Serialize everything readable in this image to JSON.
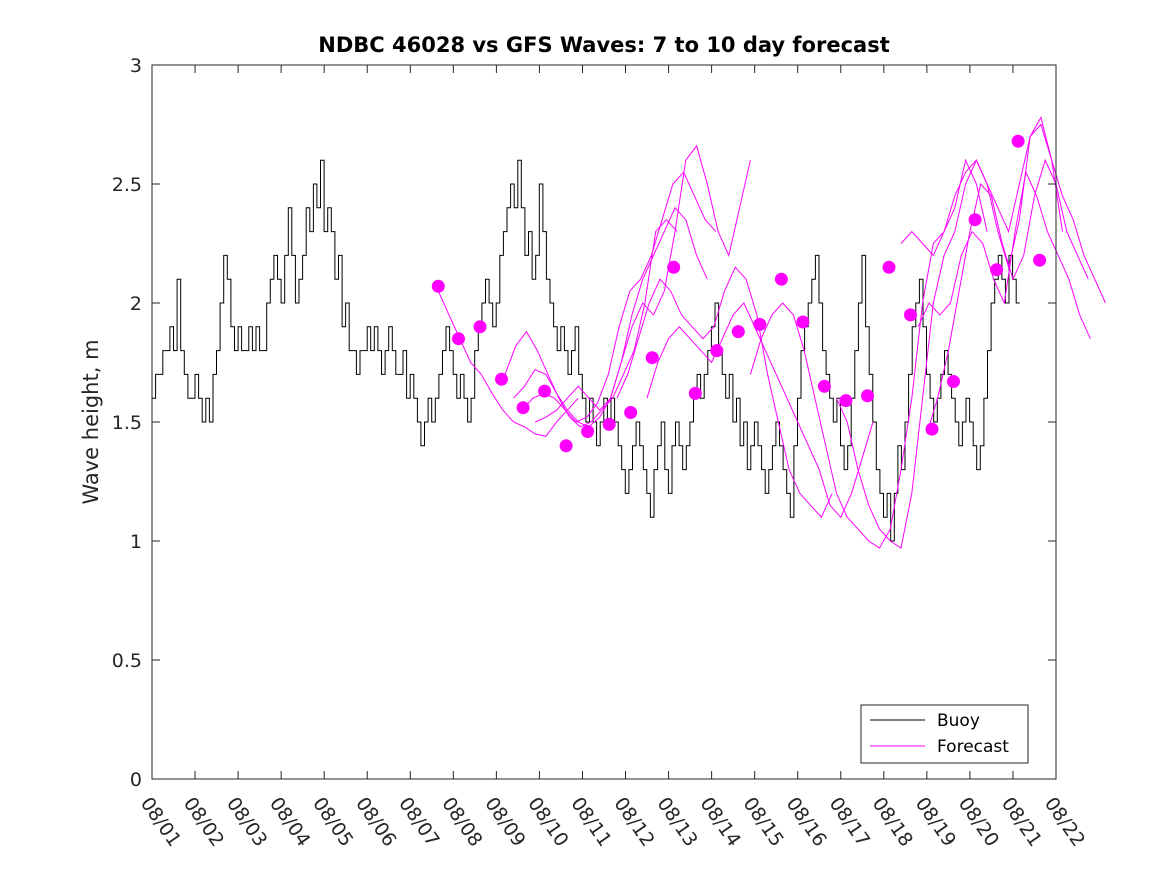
{
  "chart_data": {
    "type": "line",
    "title": "NDBC 46028 vs GFS Waves: 7 to 10 day forecast",
    "xlabel": "",
    "ylabel": "Wave height, m",
    "xlim": [
      0,
      21
    ],
    "ylim": [
      0,
      3
    ],
    "yticks": [
      0,
      0.5,
      1,
      1.5,
      2,
      2.5,
      3
    ],
    "ytick_labels": [
      "0",
      "0.5",
      "1",
      "1.5",
      "2",
      "2.5",
      "3"
    ],
    "xtick_labels": [
      "08/01",
      "08/02",
      "08/03",
      "08/04",
      "08/05",
      "08/06",
      "08/07",
      "08/08",
      "08/09",
      "08/10",
      "08/11",
      "08/12",
      "08/13",
      "08/14",
      "08/15",
      "08/16",
      "08/17",
      "08/18",
      "08/19",
      "08/20",
      "08/21",
      "08/22"
    ],
    "grid": false,
    "legend": {
      "placement": "bottom-right",
      "entries": [
        {
          "label": "Buoy",
          "color": "#000000"
        },
        {
          "label": "Forecast",
          "color": "#ff00ff"
        }
      ]
    },
    "series": [
      {
        "name": "Buoy",
        "color": "#000000",
        "x_step_days": 0.0833,
        "values": [
          1.6,
          1.7,
          1.7,
          1.8,
          1.8,
          1.9,
          1.8,
          2.1,
          1.8,
          1.7,
          1.6,
          1.6,
          1.7,
          1.6,
          1.5,
          1.6,
          1.5,
          1.7,
          1.8,
          2.0,
          2.2,
          2.1,
          1.9,
          1.8,
          1.9,
          1.8,
          1.8,
          1.9,
          1.8,
          1.9,
          1.8,
          1.8,
          2.0,
          2.1,
          2.2,
          2.1,
          2.0,
          2.2,
          2.4,
          2.2,
          2.0,
          2.1,
          2.2,
          2.4,
          2.3,
          2.5,
          2.4,
          2.6,
          2.3,
          2.4,
          2.3,
          2.1,
          2.2,
          1.9,
          2.0,
          1.8,
          1.8,
          1.7,
          1.8,
          1.8,
          1.9,
          1.8,
          1.9,
          1.8,
          1.7,
          1.8,
          1.9,
          1.8,
          1.7,
          1.7,
          1.8,
          1.6,
          1.7,
          1.6,
          1.5,
          1.4,
          1.5,
          1.6,
          1.5,
          1.6,
          1.7,
          1.8,
          1.9,
          1.8,
          1.7,
          1.6,
          1.7,
          1.6,
          1.5,
          1.6,
          1.8,
          1.9,
          2.0,
          2.1,
          2.0,
          1.9,
          2.0,
          2.2,
          2.3,
          2.4,
          2.5,
          2.4,
          2.6,
          2.4,
          2.2,
          2.3,
          2.1,
          2.2,
          2.5,
          2.3,
          2.1,
          2.0,
          1.9,
          1.8,
          1.9,
          1.8,
          1.7,
          1.8,
          1.9,
          1.7,
          1.6,
          1.5,
          1.6,
          1.5,
          1.4,
          1.5,
          1.6,
          1.5,
          1.6,
          1.5,
          1.4,
          1.3,
          1.2,
          1.3,
          1.4,
          1.5,
          1.4,
          1.3,
          1.2,
          1.1,
          1.3,
          1.4,
          1.5,
          1.3,
          1.2,
          1.4,
          1.5,
          1.4,
          1.3,
          1.4,
          1.5,
          1.6,
          1.7,
          1.6,
          1.7,
          1.8,
          1.9,
          2.0,
          1.8,
          1.7,
          1.6,
          1.7,
          1.5,
          1.6,
          1.4,
          1.5,
          1.3,
          1.4,
          1.5,
          1.4,
          1.3,
          1.2,
          1.3,
          1.4,
          1.5,
          1.4,
          1.3,
          1.2,
          1.1,
          1.4,
          1.6,
          1.8,
          1.9,
          2.0,
          2.1,
          2.2,
          2.0,
          1.8,
          1.7,
          1.6,
          1.5,
          1.6,
          1.4,
          1.3,
          1.4,
          1.6,
          1.8,
          2.0,
          2.2,
          1.9,
          1.7,
          1.5,
          1.3,
          1.2,
          1.1,
          1.2,
          1.0,
          1.2,
          1.4,
          1.3,
          1.5,
          1.7,
          1.9,
          2.0,
          2.1,
          1.9,
          1.7,
          1.6,
          1.5,
          1.6,
          1.7,
          1.8,
          1.7,
          1.6,
          1.5,
          1.4,
          1.5,
          1.6,
          1.5,
          1.4,
          1.3,
          1.4,
          1.6,
          1.8,
          2.0,
          2.1,
          2.2,
          2.1,
          2.0,
          2.2,
          2.1,
          2.0
        ]
      },
      {
        "name": "Forecast",
        "color": "#ff00ff",
        "runs": [
          {
            "x0": 6.65,
            "x_step_days": 0.25,
            "values": [
              2.05,
              1.95,
              1.85,
              1.75,
              1.7,
              1.62,
              1.55,
              1.5,
              1.48,
              1.45,
              1.44,
              1.5,
              1.55,
              1.6
            ]
          },
          {
            "x0": 8.2,
            "x_step_days": 0.25,
            "values": [
              1.7,
              1.82,
              1.88,
              1.8,
              1.7,
              1.6,
              1.52,
              1.48,
              1.5,
              1.55,
              1.6,
              1.7,
              1.8,
              2.0,
              2.3,
              2.35,
              2.3
            ]
          },
          {
            "x0": 8.4,
            "x_step_days": 0.25,
            "values": [
              1.6,
              1.65,
              1.72,
              1.7,
              1.62,
              1.55,
              1.5,
              1.48,
              1.52,
              1.6,
              1.75,
              1.95,
              2.1,
              2.2,
              2.3,
              2.4,
              2.35,
              2.2,
              2.1
            ]
          },
          {
            "x0": 8.6,
            "x_step_days": 0.25,
            "values": [
              1.55,
              1.6,
              1.62,
              1.6,
              1.55,
              1.5,
              1.52,
              1.58,
              1.7,
              1.9,
              2.05,
              2.1,
              2.2,
              2.35,
              2.5,
              2.55,
              2.45,
              2.35,
              2.3
            ]
          },
          {
            "x0": 8.9,
            "x_step_days": 0.25,
            "values": [
              1.5,
              1.52,
              1.55,
              1.6,
              1.65,
              1.6,
              1.55,
              1.6,
              1.75,
              1.9,
              2.0,
              1.95,
              2.05,
              2.3,
              2.6,
              2.66,
              2.5,
              2.3,
              2.2,
              2.4,
              2.6
            ]
          },
          {
            "x0": 10.8,
            "x_step_days": 0.25,
            "values": [
              1.6,
              1.7,
              1.85,
              2.0,
              2.1,
              2.05,
              1.95,
              1.9,
              1.85,
              1.9,
              2.05,
              2.15,
              2.1,
              1.95,
              1.7,
              1.5,
              1.3,
              1.2,
              1.15,
              1.1,
              1.2
            ]
          },
          {
            "x0": 11.5,
            "x_step_days": 0.25,
            "values": [
              1.6,
              1.75,
              1.85,
              1.9,
              1.85,
              1.8,
              1.75,
              1.85,
              1.95,
              2.0,
              1.9,
              1.8,
              1.7,
              1.6,
              1.5,
              1.4,
              1.3,
              1.15,
              1.1,
              1.2,
              1.35,
              1.5
            ]
          },
          {
            "x0": 13.9,
            "x_step_days": 0.25,
            "values": [
              1.7,
              1.85,
              1.95,
              2.0,
              1.95,
              1.8,
              1.6,
              1.4,
              1.2,
              1.1,
              1.05,
              1.0,
              0.97,
              1.05,
              1.3,
              1.6,
              2.0,
              2.25,
              2.3,
              2.4,
              2.6,
              2.5,
              2.3
            ]
          },
          {
            "x0": 15.9,
            "x_step_days": 0.25,
            "values": [
              1.6,
              1.5,
              1.3,
              1.15,
              1.05,
              1.0,
              0.97,
              1.2,
              1.6,
              2.0,
              2.2,
              2.3,
              2.5,
              2.6,
              2.5,
              2.4,
              2.3,
              2.5,
              2.7,
              2.75,
              2.6,
              2.3
            ]
          },
          {
            "x0": 17.4,
            "x_step_days": 0.25,
            "values": [
              2.25,
              2.3,
              2.25,
              2.2,
              2.3,
              2.45,
              2.55,
              2.6,
              2.5,
              2.3,
              2.15,
              2.35,
              2.7,
              2.78,
              2.6,
              2.45,
              2.35,
              2.2,
              2.1,
              2.0
            ]
          },
          {
            "x0": 17.8,
            "x_step_days": 0.25,
            "values": [
              1.9,
              2.0,
              1.95,
              2.0,
              2.2,
              2.3,
              2.25,
              2.1,
              2.0,
              2.3,
              2.55,
              2.45,
              2.3,
              2.2,
              2.1,
              1.95,
              1.85
            ]
          },
          {
            "x0": 18.0,
            "x_step_days": 0.25,
            "values": [
              1.45,
              1.6,
              1.8,
              2.05,
              2.3,
              2.5,
              2.45,
              2.25,
              2.1,
              2.2,
              2.45,
              2.6,
              2.5,
              2.3,
              2.2,
              2.1
            ]
          }
        ]
      },
      {
        "name": "Forecast markers",
        "color": "#ff00ff",
        "x": [
          6.65,
          7.12,
          7.62,
          8.12,
          8.62,
          9.12,
          9.62,
          10.12,
          10.62,
          11.12,
          11.62,
          12.12,
          12.62,
          13.12,
          13.62,
          14.12,
          14.62,
          15.12,
          15.62,
          16.12,
          16.62,
          17.12,
          17.62,
          18.12,
          18.62,
          19.12,
          19.62,
          20.12,
          20.62
        ],
        "values": [
          2.07,
          1.85,
          1.9,
          1.68,
          1.56,
          1.63,
          1.4,
          1.46,
          1.49,
          1.54,
          1.77,
          2.15,
          1.62,
          1.8,
          1.88,
          1.91,
          2.1,
          1.92,
          1.65,
          1.59,
          1.61,
          2.15,
          1.95,
          1.47,
          1.67,
          2.35,
          2.14,
          2.68,
          2.18
        ]
      }
    ]
  }
}
